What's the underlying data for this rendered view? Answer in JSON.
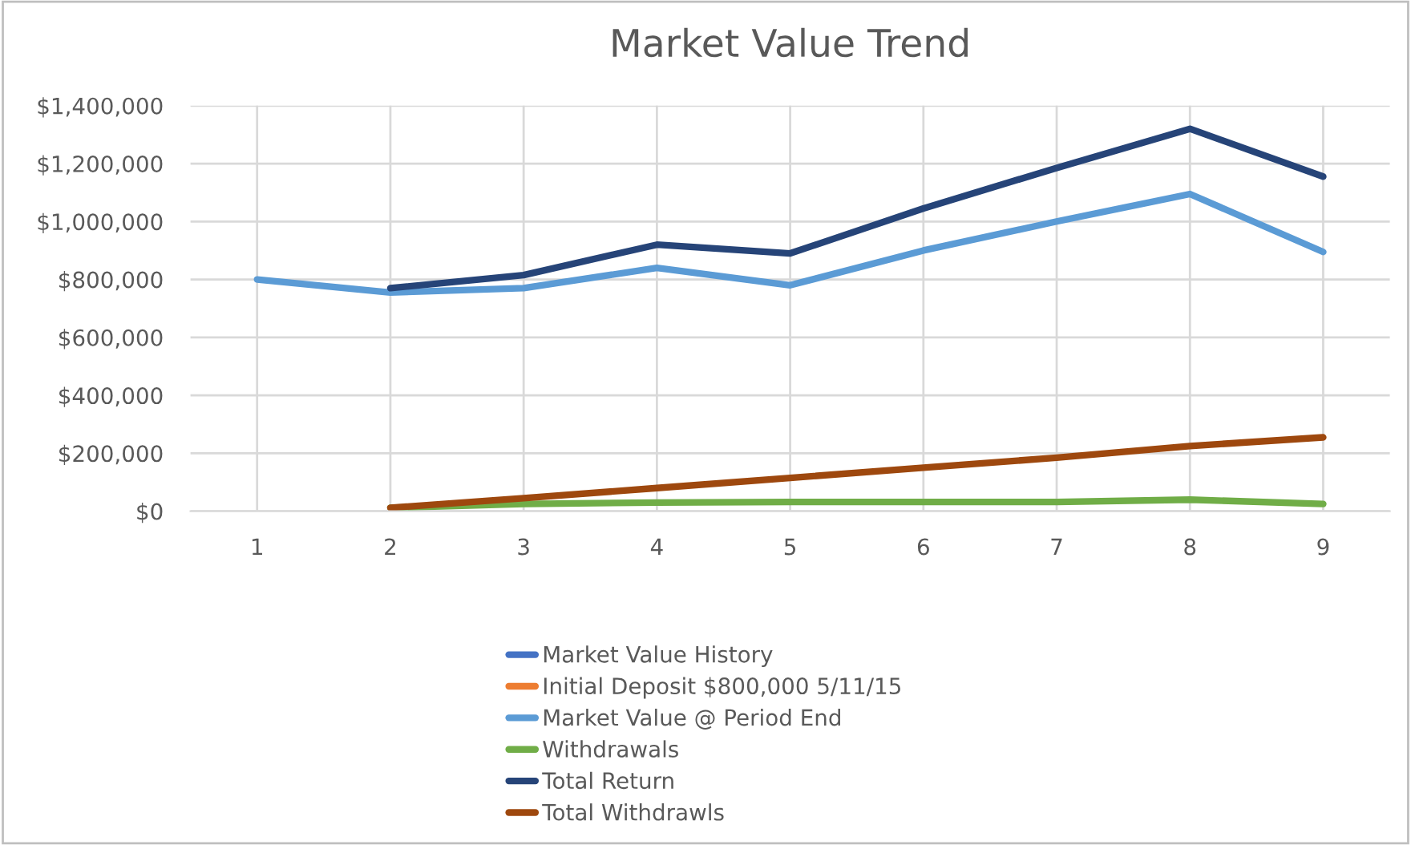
{
  "chart_data": {
    "type": "line",
    "title": "Market Value Trend",
    "categories": [
      "1",
      "2",
      "3",
      "4",
      "5",
      "6",
      "7",
      "8",
      "9"
    ],
    "series": [
      {
        "name": "Market Value History",
        "color": "#4472c4",
        "values": [
          null,
          null,
          null,
          null,
          null,
          null,
          null,
          null,
          null
        ]
      },
      {
        "name": "Initial Deposit $800,000 5/11/15",
        "color": "#ed7d31",
        "values": [
          null,
          null,
          null,
          null,
          null,
          null,
          null,
          null,
          null
        ]
      },
      {
        "name": "Market Value @ Period End",
        "color": "#5b9bd5",
        "values": [
          800000,
          755000,
          770000,
          840000,
          780000,
          900000,
          1000000,
          1095000,
          895000
        ]
      },
      {
        "name": "Withdrawals",
        "color": "#70ad47",
        "values": [
          null,
          12000,
          25000,
          30000,
          32000,
          32000,
          32000,
          40000,
          25000
        ]
      },
      {
        "name": "Total Return",
        "color": "#264478",
        "values": [
          null,
          770000,
          815000,
          920000,
          890000,
          1045000,
          1185000,
          1320000,
          1155000
        ]
      },
      {
        "name": "Total Withdrawls",
        "color": "#9e480e",
        "values": [
          null,
          12000,
          45000,
          80000,
          115000,
          150000,
          185000,
          225000,
          255000
        ]
      }
    ],
    "ylim": [
      0,
      1400000
    ],
    "yticks": [
      {
        "value": 0,
        "label": "$0"
      },
      {
        "value": 200000,
        "label": "$200,000"
      },
      {
        "value": 400000,
        "label": "$400,000"
      },
      {
        "value": 600000,
        "label": "$600,000"
      },
      {
        "value": 800000,
        "label": "$800,000"
      },
      {
        "value": 1000000,
        "label": "$1,000,000"
      },
      {
        "value": 1200000,
        "label": "$1,200,000"
      },
      {
        "value": 1400000,
        "label": "$1,400,000"
      }
    ],
    "grid": true,
    "legend": "bottom",
    "line_style": "solid",
    "marker": "none"
  }
}
